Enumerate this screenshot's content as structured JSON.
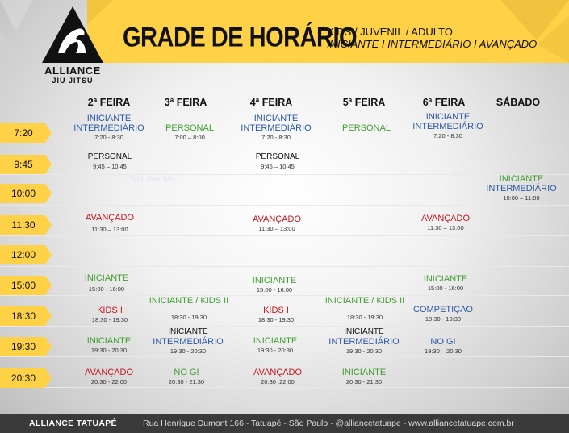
{
  "header": {
    "title": "GRADE DE HORÁRIO",
    "subtitle_line1": "KIDS / JUVENIL / ADULTO",
    "subtitle_line2": "INICIANTE I INTERMEDIÁRIO I AVANÇADO",
    "logo_name": "ALLIANCE",
    "logo_sub": "JIU JITSU",
    "accent_color": "#fed146"
  },
  "days": [
    "2ª FEIRA",
    "3ª FEIRA",
    "4ª FEIRA",
    "5ª FEIRA",
    "6ª FEIRA",
    "SÁBADO"
  ],
  "times": [
    "7:20",
    "9:45",
    "10:00",
    "11:30",
    "12:00",
    "15:00",
    "18:30",
    "19:30",
    "20:30"
  ],
  "ghost_text": "Type your text",
  "classes": {
    "mon_0720_l1": "INICIANTE",
    "mon_0720_l2": "INTERMEDIÁRIO",
    "mon_0720_t": "7:20 - 8:30",
    "tue_0720_l": "PERSONAL",
    "tue_0720_t": "7:00 – 8:00",
    "wed_0720_l1": "INICIANTE",
    "wed_0720_l2": "INTERMEDIÁRIO",
    "wed_0720_t": "7:20 - 8:30",
    "thu_0720_l": "PERSONAL",
    "fri_0720_l1": "INICIANTE",
    "fri_0720_l2": "INTERMEDIÁRIO",
    "fri_0720_t": "7:20 - 8:30",
    "mon_0945_l": "PERSONAL",
    "mon_0945_t": "9:45 – 10:45",
    "wed_0945_l": "PERSONAL",
    "wed_0945_t": "9:45 – 10:45",
    "sat_1000_l1": "INICIANTE",
    "sat_1000_l2": "INTERMEDIÁRIO",
    "sat_1000_t": "10:00 – 11:00",
    "mon_1130_l": "AVANÇADO",
    "mon_1130_t": "11:30 – 13:00",
    "wed_1130_l": "AVANÇADO",
    "wed_1130_t": "11:30 – 13:00",
    "fri_1130_l": "AVANÇADO",
    "fri_1130_t": "11:30 – 13:00",
    "mon_1500_l": "INICIANTE",
    "mon_1500_t": "15:00 - 16:00",
    "wed_1500_l": "INICIANTE",
    "wed_1500_t": "15:00 - 16:00",
    "fri_1500_l": "INICIANTE",
    "fri_1500_t": "15:00 - 16:00",
    "tue_1830_l": "INICIANTE / KIDS II",
    "tue_1830_t": "18:30 - 19:30",
    "thu_1830_l": "INICIANTE / KIDS II",
    "thu_1830_t": "18:30 - 19:30",
    "mon_1830_l": "KIDS I",
    "mon_1830_t": "18:30 - 19:30",
    "wed_1830_l": "KIDS I",
    "wed_1830_t": "18:30 - 19:30",
    "fri_1830_l": "COMPETIÇAO",
    "fri_1830_t": "18:30 - 19:30",
    "mon_1930_l": "INICIANTE",
    "mon_1930_t": "19:30 - 20:30",
    "tue_1930_l1": "INICIANTE",
    "tue_1930_l2": "INTERMEDIÁRIO",
    "tue_1930_t": "19:30 - 20:30",
    "wed_1930_l": "INICIANTE",
    "wed_1930_t": "19:30 - 20:30",
    "thu_1930_l1": "INICIANTE",
    "thu_1930_l2": "INTERMEDIÁRIO",
    "thu_1930_t": "19:30 - 20:30",
    "fri_1930_l": "NO GI",
    "fri_1930_t": "19:30 – 20:30",
    "mon_2030_l": "AVANÇADO",
    "mon_2030_t": "20:30 - 22:00",
    "tue_2030_l": "NO GI",
    "tue_2030_t": "20:30 - 21:30",
    "wed_2030_l": "AVANÇADO",
    "wed_2030_t": "20:30 :22:00",
    "thu_2030_l": "INICIANTE",
    "thu_2030_t": "20:30 - 21:30"
  },
  "footer": {
    "name": "ALLIANCE TATUAPÉ",
    "info": "Rua Henrique Dumont 166 - Tatuapé - São Paulo - @alliancetatuape - www.alliancetatuape.com.br"
  }
}
